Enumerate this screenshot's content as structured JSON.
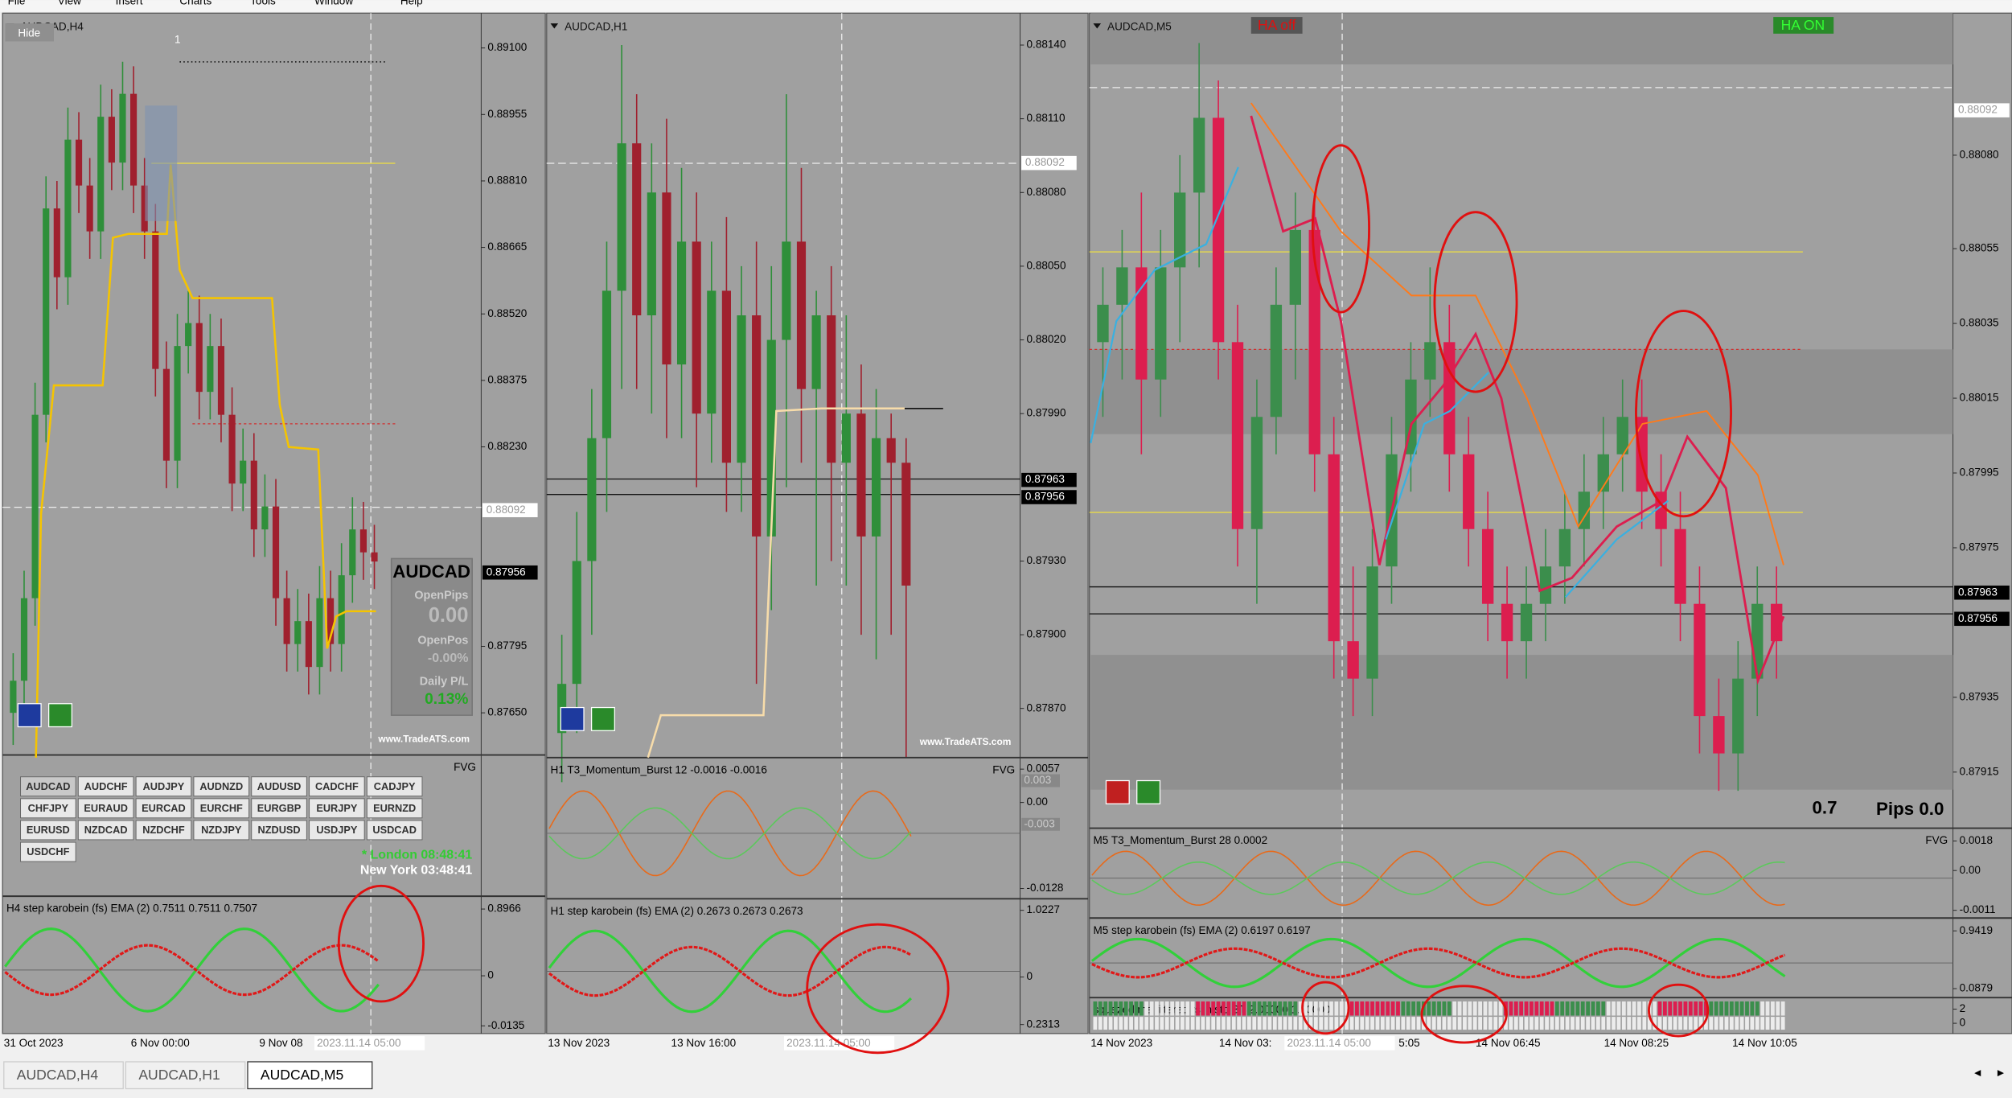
{
  "menu": [
    "File",
    "View",
    "Insert",
    "Charts",
    "Tools",
    "Window",
    "Help"
  ],
  "panels": [
    {
      "title": "AUDCAD,H4",
      "ylim": [
        0.87558,
        0.89176
      ],
      "price_ticks": [
        {
          "value": 0.891,
          "label": "0.89100"
        },
        {
          "value": 0.88955,
          "label": "0.88955"
        },
        {
          "value": 0.8881,
          "label": "0.88810"
        },
        {
          "value": 0.88665,
          "label": "0.88665"
        },
        {
          "value": 0.8852,
          "label": "0.88520"
        },
        {
          "value": 0.88375,
          "label": "0.88375"
        },
        {
          "value": 0.8823,
          "label": "0.88230"
        },
        {
          "value": 0.87795,
          "label": "0.87795"
        },
        {
          "value": 0.8765,
          "label": "0.87650"
        }
      ],
      "price_markers": [
        {
          "value": 0.88092,
          "label": "0.88092"
        },
        {
          "value": 0.87956,
          "label": "0.87956"
        }
      ],
      "candles": [
        [
          0.8765,
          0.8778,
          0.8758,
          0.8772
        ],
        [
          0.8772,
          0.8796,
          0.8766,
          0.879
        ],
        [
          0.879,
          0.8837,
          0.8784,
          0.883
        ],
        [
          0.883,
          0.8882,
          0.8824,
          0.8875
        ],
        [
          0.8875,
          0.8881,
          0.8853,
          0.886
        ],
        [
          0.886,
          0.8897,
          0.8854,
          0.889
        ],
        [
          0.889,
          0.8896,
          0.8874,
          0.888
        ],
        [
          0.888,
          0.8886,
          0.8864,
          0.887
        ],
        [
          0.887,
          0.8902,
          0.8864,
          0.8895
        ],
        [
          0.8895,
          0.8901,
          0.8879,
          0.8885
        ],
        [
          0.8885,
          0.8907,
          0.8879,
          0.89
        ],
        [
          0.89,
          0.8906,
          0.8874,
          0.888
        ],
        [
          0.888,
          0.8886,
          0.8864,
          0.887
        ],
        [
          0.887,
          0.8876,
          0.8834,
          0.884
        ],
        [
          0.884,
          0.8846,
          0.8814,
          0.882
        ],
        [
          0.882,
          0.8852,
          0.8814,
          0.8845
        ],
        [
          0.8845,
          0.8857,
          0.8839,
          0.885
        ],
        [
          0.885,
          0.8856,
          0.8829,
          0.8835
        ],
        [
          0.8835,
          0.8852,
          0.8829,
          0.8845
        ],
        [
          0.8845,
          0.8851,
          0.8824,
          0.883
        ],
        [
          0.883,
          0.8836,
          0.8809,
          0.8815
        ],
        [
          0.8815,
          0.8827,
          0.8809,
          0.882
        ],
        [
          0.882,
          0.8826,
          0.8799,
          0.8805
        ],
        [
          0.8805,
          0.8817,
          0.8799,
          0.881
        ],
        [
          0.881,
          0.8816,
          0.8784,
          0.879
        ],
        [
          0.879,
          0.8796,
          0.8774,
          0.878
        ],
        [
          0.878,
          0.8792,
          0.8774,
          0.8785
        ],
        [
          0.8785,
          0.8791,
          0.8769,
          0.8775
        ],
        [
          0.8775,
          0.8797,
          0.8769,
          0.879
        ],
        [
          0.879,
          0.8796,
          0.8774,
          0.878
        ],
        [
          0.878,
          0.8802,
          0.8774,
          0.8795
        ],
        [
          0.8795,
          0.8812,
          0.8789,
          0.8805
        ],
        [
          0.8805,
          0.8811,
          0.8794,
          0.88
        ],
        [
          0.88,
          0.8806,
          0.8792,
          0.8798
        ]
      ],
      "subwindows": [
        {
          "right": "FVG"
        },
        {
          "title": "H4 step karobein (fs) EMA (2) 0.7511 0.7511 0.7507",
          "ticks": [
            "0.8966",
            "0",
            "-0.0135"
          ]
        }
      ],
      "time_labels": [
        "31 Oct 2023",
        "6 Nov 00:00",
        "9 Nov 08",
        "2023.11.14 05:00"
      ]
    },
    {
      "title": "AUDCAD,H1",
      "ylim": [
        0.8785,
        0.88153
      ],
      "price_ticks": [
        {
          "value": 0.8814,
          "label": "0.88140"
        },
        {
          "value": 0.8811,
          "label": "0.88110"
        },
        {
          "value": 0.8808,
          "label": "0.88080"
        },
        {
          "value": 0.8805,
          "label": "0.88050"
        },
        {
          "value": 0.8802,
          "label": "0.88020"
        },
        {
          "value": 0.8799,
          "label": "0.87990"
        },
        {
          "value": 0.8793,
          "label": "0.87930"
        },
        {
          "value": 0.879,
          "label": "0.87900"
        },
        {
          "value": 0.8787,
          "label": "0.87870"
        }
      ],
      "price_markers": [
        {
          "value": 0.88092,
          "label": "0.88092"
        },
        {
          "value": 0.87963,
          "label": "0.87963"
        },
        {
          "value": 0.87956,
          "label": "0.87956"
        }
      ],
      "candles": [
        [
          0.8786,
          0.879,
          0.8784,
          0.8788
        ],
        [
          0.8788,
          0.8795,
          0.8786,
          0.8793
        ],
        [
          0.8793,
          0.88,
          0.879,
          0.8798
        ],
        [
          0.8798,
          0.8806,
          0.8795,
          0.8804
        ],
        [
          0.8804,
          0.8814,
          0.88,
          0.881
        ],
        [
          0.881,
          0.8812,
          0.88,
          0.8803
        ],
        [
          0.8803,
          0.881,
          0.8799,
          0.8808
        ],
        [
          0.8808,
          0.8811,
          0.8798,
          0.8801
        ],
        [
          0.8801,
          0.8809,
          0.8798,
          0.8806
        ],
        [
          0.8806,
          0.8808,
          0.8796,
          0.8799
        ],
        [
          0.8799,
          0.8806,
          0.8797,
          0.8804
        ],
        [
          0.8804,
          0.8807,
          0.8795,
          0.8797
        ],
        [
          0.8797,
          0.8805,
          0.8795,
          0.8803
        ],
        [
          0.8803,
          0.8806,
          0.8788,
          0.8794
        ],
        [
          0.8794,
          0.8805,
          0.8791,
          0.8802
        ],
        [
          0.8802,
          0.8812,
          0.8796,
          0.8806
        ],
        [
          0.8806,
          0.8809,
          0.8797,
          0.88
        ],
        [
          0.88,
          0.8804,
          0.8792,
          0.8803
        ],
        [
          0.8803,
          0.8805,
          0.8793,
          0.8797
        ],
        [
          0.8797,
          0.8803,
          0.8792,
          0.8799
        ],
        [
          0.8799,
          0.8801,
          0.879,
          0.8794
        ],
        [
          0.8794,
          0.88,
          0.8789,
          0.8798
        ],
        [
          0.8798,
          0.8799,
          0.879,
          0.8797
        ],
        [
          0.8797,
          0.8798,
          0.8785,
          0.8792
        ]
      ],
      "subwindows": [
        {
          "title": "H1 T3_Momentum_Burst 12 -0.0016 -0.0016",
          "right": "FVG",
          "ticks": [
            "0.0057",
            "0.00",
            "-0.0128"
          ],
          "boxed_ticks": [
            "0.003",
            "-0.003"
          ]
        },
        {
          "title": "H1 step karobein (fs) EMA (2) 0.2673 0.2673 0.2673",
          "ticks": [
            "1.0227",
            "0",
            "0.2313"
          ]
        }
      ],
      "time_labels": [
        "13 Nov 2023",
        "13 Nov 16:00",
        "2023.11.14 05:00"
      ]
    },
    {
      "title": "AUDCAD,M5",
      "ylim": [
        0.879,
        0.88118
      ],
      "price_ticks": [
        {
          "value": 0.8808,
          "label": "0.88080"
        },
        {
          "value": 0.88055,
          "label": "0.88055"
        },
        {
          "value": 0.88035,
          "label": "0.88035"
        },
        {
          "value": 0.88015,
          "label": "0.88015"
        },
        {
          "value": 0.87995,
          "label": "0.87995"
        },
        {
          "value": 0.87975,
          "label": "0.87975"
        },
        {
          "value": 0.87935,
          "label": "0.87935"
        },
        {
          "value": 0.87915,
          "label": "0.87915"
        }
      ],
      "price_markers": [
        {
          "value": 0.88092,
          "label": "0.88092"
        },
        {
          "value": 0.87963,
          "label": "0.87963"
        },
        {
          "value": 0.87956,
          "label": "0.87956"
        }
      ],
      "candles": [
        [
          0.8803,
          0.8805,
          0.8801,
          0.8804
        ],
        [
          0.8804,
          0.8806,
          0.8802,
          0.8805
        ],
        [
          0.8805,
          0.8807,
          0.88,
          0.8802
        ],
        [
          0.8802,
          0.8806,
          0.8801,
          0.8805
        ],
        [
          0.8805,
          0.8808,
          0.8803,
          0.8807
        ],
        [
          0.8807,
          0.8811,
          0.8805,
          0.8809
        ],
        [
          0.8809,
          0.881,
          0.8802,
          0.8803
        ],
        [
          0.8803,
          0.8804,
          0.8797,
          0.8798
        ],
        [
          0.8798,
          0.8802,
          0.8796,
          0.8801
        ],
        [
          0.8801,
          0.8805,
          0.88,
          0.8804
        ],
        [
          0.8804,
          0.8807,
          0.8802,
          0.8806
        ],
        [
          0.8806,
          0.8807,
          0.8799,
          0.88
        ],
        [
          0.88,
          0.8801,
          0.8794,
          0.8795
        ],
        [
          0.8795,
          0.8797,
          0.8793,
          0.8794
        ],
        [
          0.8794,
          0.8798,
          0.8793,
          0.8797
        ],
        [
          0.8797,
          0.8801,
          0.8796,
          0.88
        ],
        [
          0.88,
          0.8803,
          0.8799,
          0.8802
        ],
        [
          0.8802,
          0.8805,
          0.8801,
          0.8803
        ],
        [
          0.8803,
          0.8804,
          0.8799,
          0.88
        ],
        [
          0.88,
          0.8801,
          0.8797,
          0.8798
        ],
        [
          0.8798,
          0.8799,
          0.8795,
          0.8796
        ],
        [
          0.8796,
          0.8797,
          0.8794,
          0.8795
        ],
        [
          0.8795,
          0.8797,
          0.8794,
          0.8796
        ],
        [
          0.8796,
          0.8798,
          0.8795,
          0.8797
        ],
        [
          0.8797,
          0.8799,
          0.8796,
          0.8798
        ],
        [
          0.8798,
          0.88,
          0.8797,
          0.8799
        ],
        [
          0.8799,
          0.8801,
          0.8798,
          0.88
        ],
        [
          0.88,
          0.8802,
          0.8799,
          0.8801
        ],
        [
          0.8801,
          0.8802,
          0.8798,
          0.8799
        ],
        [
          0.8799,
          0.88,
          0.8797,
          0.8798
        ],
        [
          0.8798,
          0.8799,
          0.8795,
          0.8796
        ],
        [
          0.8796,
          0.8797,
          0.8792,
          0.8793
        ],
        [
          0.8793,
          0.8794,
          0.8791,
          0.8792
        ],
        [
          0.8792,
          0.8795,
          0.8791,
          0.8794
        ],
        [
          0.8794,
          0.8797,
          0.8793,
          0.8796
        ],
        [
          0.8796,
          0.8797,
          0.8794,
          0.8795
        ]
      ],
      "subwindows": [
        {
          "title": "M5 T3_Momentum_Burst 28 0.0002",
          "right": "FVG",
          "ticks": [
            "0.0018",
            "0.00",
            "-0.0011"
          ]
        },
        {
          "title": "M5 step karobein (fs) EMA (2) 0.6197 0.6197",
          "ticks": [
            "0.9419",
            "0.0879"
          ]
        },
        {
          "title": "squezed ma filtered rsi histo BT 2.00000 1.00000",
          "ticks": [
            "2",
            "0"
          ]
        }
      ],
      "time_labels": [
        "14 Nov 2023",
        "14 Nov 03:",
        "2023.11.14 05:00",
        "5:05",
        "14 Nov 06:45",
        "14 Nov 08:25",
        "14 Nov 10:05"
      ]
    }
  ],
  "h4_overlay": {
    "hide": "Hide",
    "marker": "1",
    "symbol": "AUDCAD",
    "open_pips_label": "OpenPips",
    "open_pips": "0.00",
    "open_pos_label": "OpenPos",
    "open_pos": "-0.00%",
    "daily_label": "Daily P/L",
    "daily": "0.13%",
    "watermark": "www.TradeATS.com",
    "symbols": [
      "AUDCAD",
      "AUDCHF",
      "AUDJPY",
      "AUDNZD",
      "AUDUSD",
      "CADCHF",
      "CADJPY",
      "CHFJPY",
      "EURAUD",
      "EURCAD",
      "EURCHF",
      "EURGBP",
      "EURJPY",
      "EURNZD",
      "EURUSD",
      "NZDCAD",
      "NZDCHF",
      "NZDJPY",
      "NZDUSD",
      "USDJPY",
      "USDCAD",
      "USDCHF"
    ],
    "london": "* London 08:48:41",
    "new_york": "New York 03:48:41"
  },
  "h1_overlay": {
    "watermark": "www.TradeATS.com"
  },
  "m5_overlay": {
    "ha_off": "HA off",
    "ha_on": "HA ON",
    "pips_value": "0.7",
    "pips": "Pips 0.0"
  },
  "tabs": [
    "AUDCAD,H4",
    "AUDCAD,H1",
    "AUDCAD,M5"
  ]
}
